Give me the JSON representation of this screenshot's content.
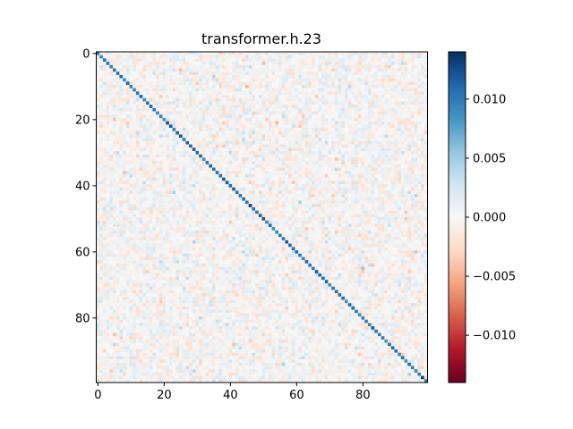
{
  "chart_data": {
    "type": "heatmap",
    "title": "transformer.h.23",
    "xlabel": "",
    "ylabel": "",
    "rows": 100,
    "cols": 100,
    "colormap": "RdBu",
    "value_range": [
      -0.014,
      0.014
    ],
    "x_ticks": [
      0,
      20,
      40,
      60,
      80
    ],
    "y_ticks": [
      0,
      20,
      40,
      60,
      80
    ],
    "diagonal_values": {
      "min": 0.0085,
      "max": 0.014,
      "typical": 0.0105
    },
    "off_diagonal_noise_amplitude": 0.0028,
    "colorbar": {
      "ticks": [
        0.01,
        0.005,
        0.0,
        -0.005,
        -0.01
      ],
      "tick_labels": [
        "0.010",
        "0.005",
        "0.000",
        "−0.005",
        "−0.010"
      ],
      "colors": {
        "low": "#67001f",
        "mid": "#f7f7f7",
        "high": "#053061"
      }
    }
  }
}
